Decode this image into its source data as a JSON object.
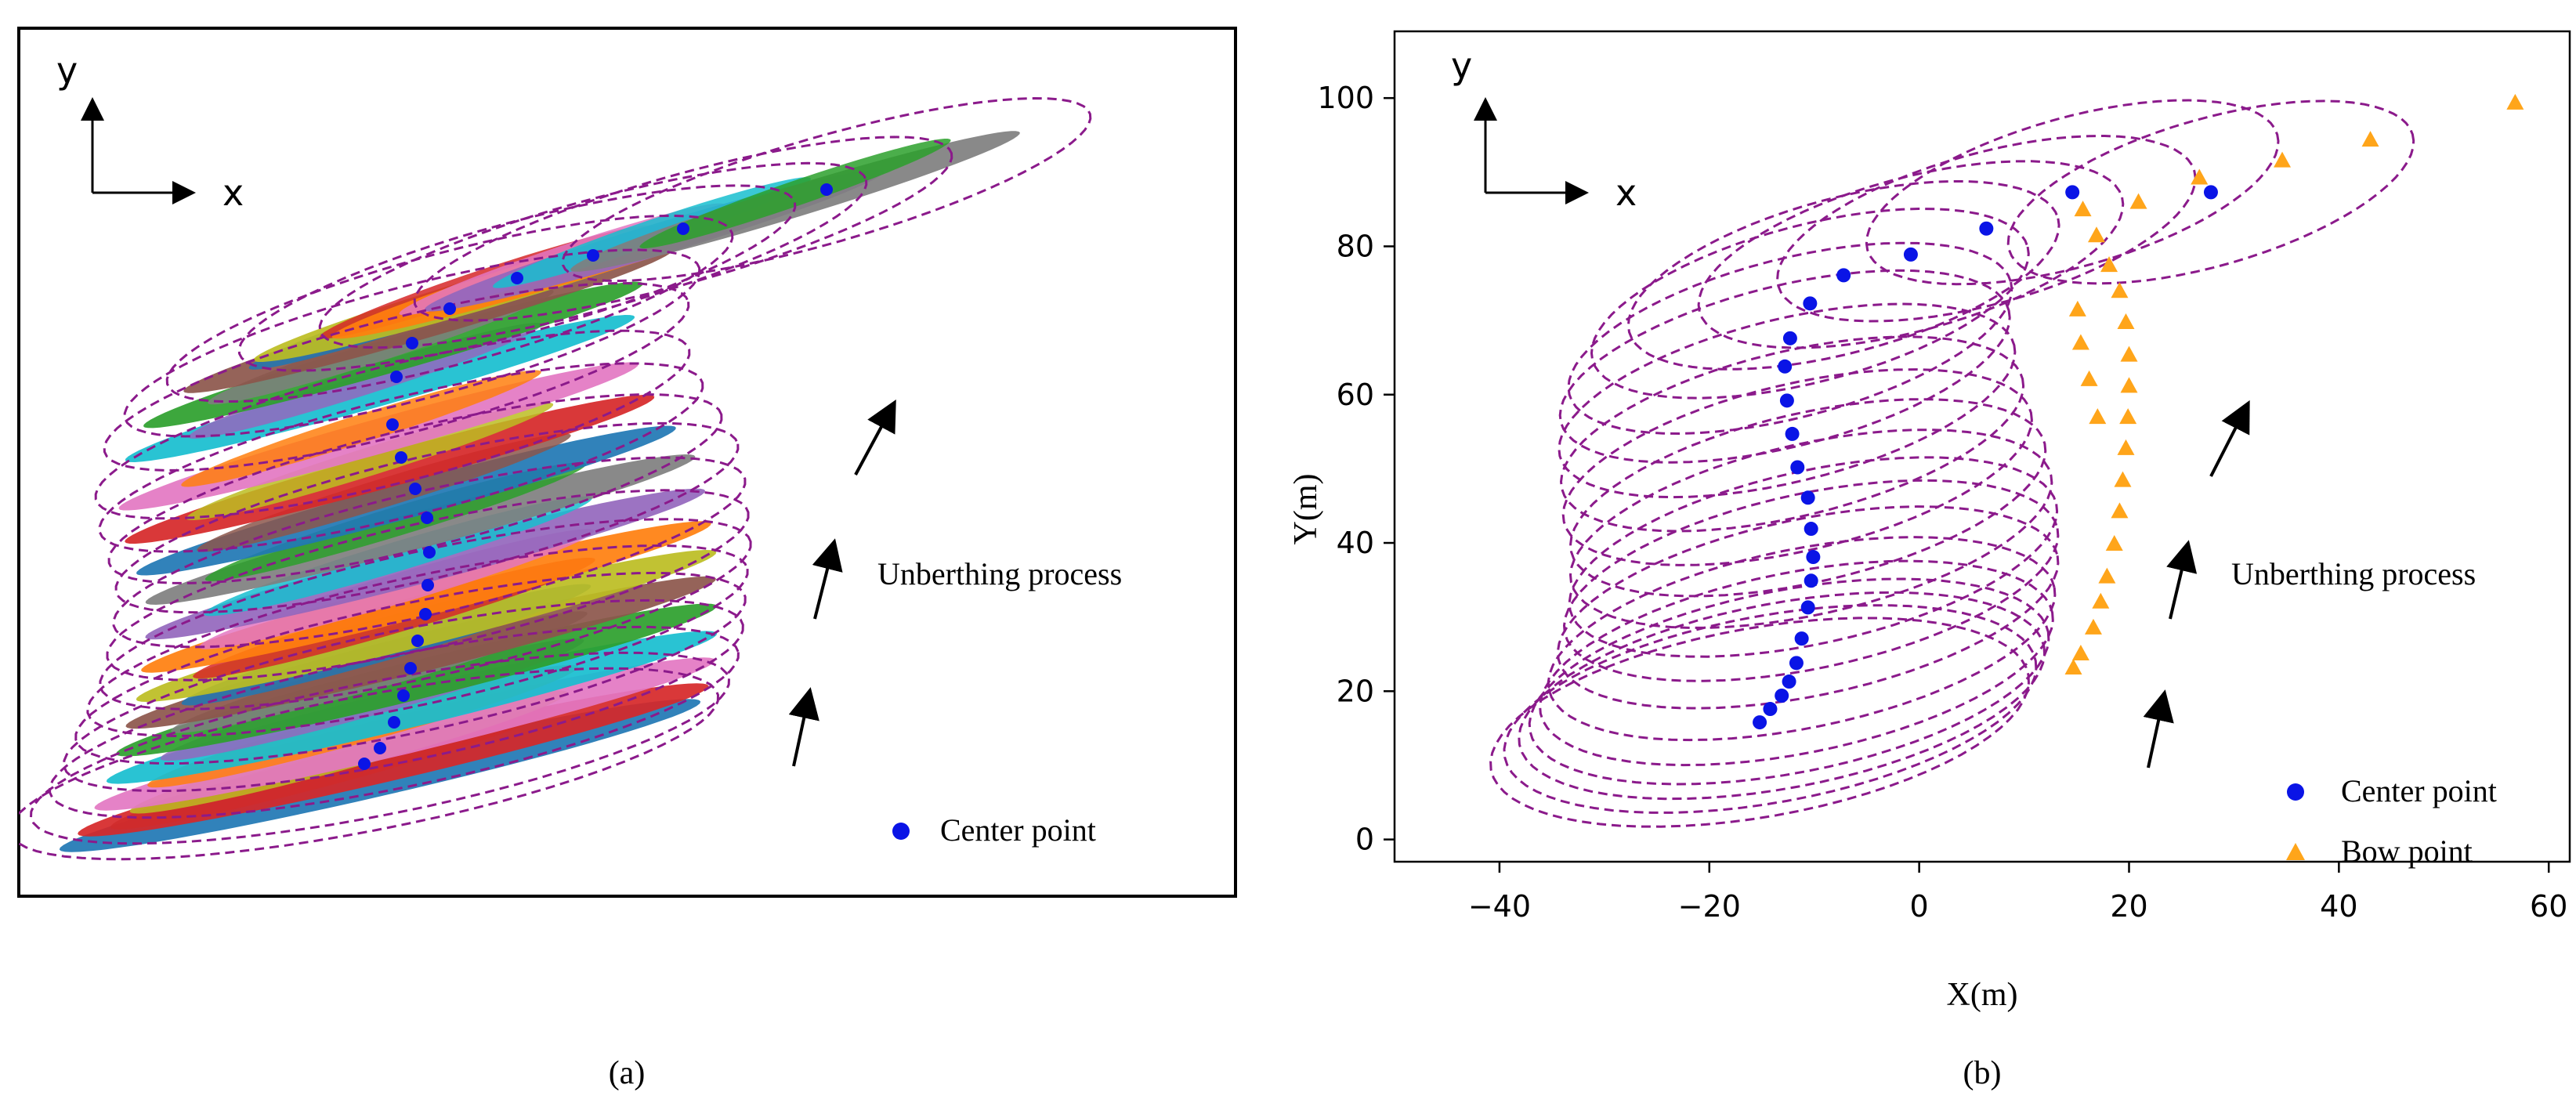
{
  "colors": {
    "ellipse": "#8b1a8b",
    "center_point": "#0a14e6",
    "bow_point": "#ffa51a",
    "arrow": "#000000",
    "cloud_palette": [
      "#1f77b4",
      "#ff7f0e",
      "#2ca02c",
      "#d62728",
      "#9467bd",
      "#8c564b",
      "#e377c2",
      "#7f7f7f",
      "#bcbd22",
      "#17becf"
    ]
  },
  "panel_a": {
    "caption": "(a)",
    "axis_y": "y",
    "axis_x": "x",
    "process_label": "Unberthing process",
    "legend_center": "Center point"
  },
  "chart_data": {
    "type": "scatter",
    "caption": "(b)",
    "xlabel": "X(m)",
    "ylabel": "Y(m)",
    "xlim": [
      -50,
      62
    ],
    "ylim": [
      -3,
      109
    ],
    "xticks": [
      -40,
      -20,
      0,
      20,
      40,
      60
    ],
    "yticks": [
      0,
      20,
      40,
      60,
      80,
      100
    ],
    "xtick_labels": [
      "−40",
      "−20",
      "0",
      "20",
      "40",
      "60"
    ],
    "ytick_labels": [
      "0",
      "20",
      "40",
      "60",
      "80",
      "100"
    ],
    "axis_y": "y",
    "axis_x": "x",
    "process_label": "Unberthing process",
    "legend": [
      "Center point",
      "Bow point"
    ],
    "series": [
      {
        "name": "Center point",
        "x": [
          -15.2,
          -14.2,
          -13.1,
          -12.4,
          -11.7,
          -11.2,
          -10.6,
          -10.3,
          -10.1,
          -10.3,
          -10.6,
          -11.6,
          -12.1,
          -12.6,
          -12.8,
          -12.3,
          -10.4,
          -7.2,
          -0.8,
          6.4,
          14.6,
          27.8
        ],
        "y": [
          15.8,
          17.6,
          19.4,
          21.3,
          23.8,
          27.1,
          31.3,
          34.9,
          38.1,
          41.9,
          46.1,
          50.2,
          54.7,
          59.2,
          63.8,
          67.6,
          72.3,
          76.1,
          78.9,
          82.4,
          87.3,
          87.3
        ]
      },
      {
        "name": "Bow point",
        "x": [
          14.7,
          15.4,
          16.6,
          17.3,
          17.9,
          18.6,
          19.1,
          19.4,
          19.7,
          19.9,
          20.0,
          20.0,
          19.7,
          19.1,
          18.1,
          16.9,
          15.6,
          15.1,
          15.4,
          16.2,
          17.0,
          20.9,
          26.7,
          34.6,
          43.0,
          56.8
        ],
        "y": [
          23.2,
          25.1,
          28.6,
          32.1,
          35.5,
          39.9,
          44.3,
          48.5,
          52.8,
          57.0,
          61.2,
          65.4,
          69.8,
          74.0,
          77.5,
          81.5,
          85.0,
          71.5,
          67.0,
          62.1,
          57.0,
          86.0,
          89.3,
          91.6,
          94.4,
          99.4
        ]
      }
    ]
  }
}
